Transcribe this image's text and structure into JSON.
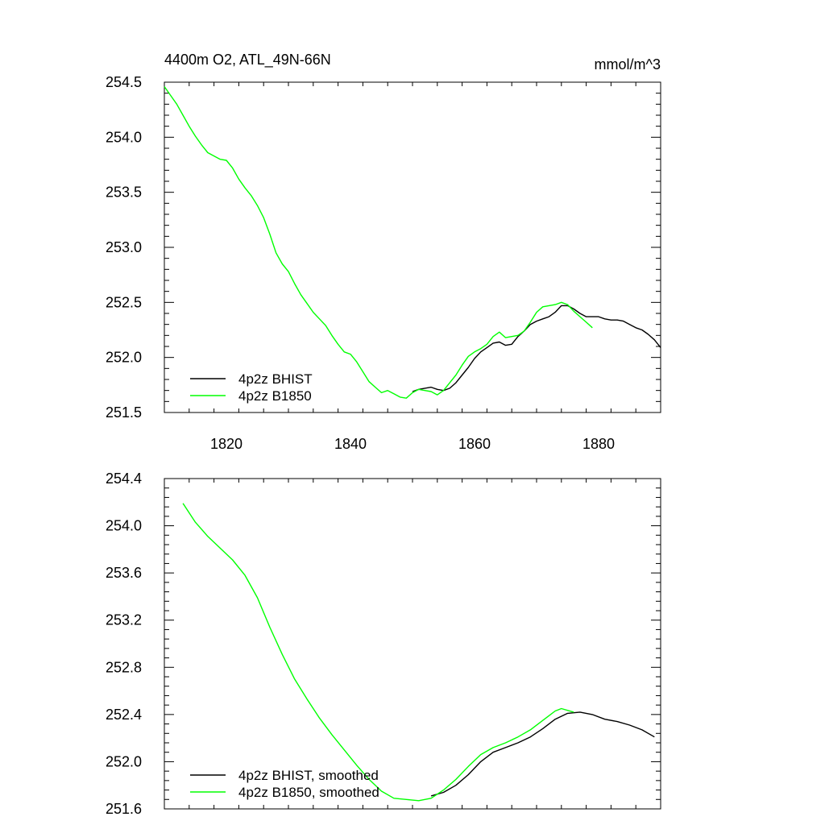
{
  "chart_data": [
    {
      "type": "line",
      "title": "4400m O2, ATL_49N-66N",
      "units": "mmol/m^3",
      "xlim": [
        1810,
        1890
      ],
      "ylim": [
        251.5,
        254.5
      ],
      "xticks": [
        "1820",
        "1840",
        "1860",
        "1880"
      ],
      "yticks": [
        "251.5",
        "252.0",
        "252.5",
        "253.0",
        "253.5",
        "254.0",
        "254.5"
      ],
      "grid": false,
      "legend_position": "bottom-left",
      "series": [
        {
          "name": "4p2z BHIST",
          "color": "#000000",
          "points": [
            [
              1850,
              251.69
            ],
            [
              1851,
              251.71
            ],
            [
              1852,
              251.72
            ],
            [
              1853,
              251.73
            ],
            [
              1854,
              251.71
            ],
            [
              1855,
              251.7
            ],
            [
              1856,
              251.72
            ],
            [
              1857,
              251.77
            ],
            [
              1858,
              251.84
            ],
            [
              1859,
              251.91
            ],
            [
              1860,
              251.99
            ],
            [
              1861,
              252.05
            ],
            [
              1862,
              252.09
            ],
            [
              1863,
              252.13
            ],
            [
              1864,
              252.14
            ],
            [
              1865,
              252.11
            ],
            [
              1866,
              252.12
            ],
            [
              1867,
              252.19
            ],
            [
              1868,
              252.24
            ],
            [
              1869,
              252.3
            ],
            [
              1870,
              252.33
            ],
            [
              1871,
              252.35
            ],
            [
              1872,
              252.37
            ],
            [
              1873,
              252.41
            ],
            [
              1874,
              252.47
            ],
            [
              1875,
              252.47
            ],
            [
              1876,
              252.44
            ],
            [
              1877,
              252.4
            ],
            [
              1878,
              252.37
            ],
            [
              1879,
              252.37
            ],
            [
              1880,
              252.37
            ],
            [
              1881,
              252.35
            ],
            [
              1882,
              252.34
            ],
            [
              1883,
              252.34
            ],
            [
              1884,
              252.33
            ],
            [
              1885,
              252.3
            ],
            [
              1886,
              252.27
            ],
            [
              1887,
              252.25
            ],
            [
              1888,
              252.21
            ],
            [
              1889,
              252.16
            ],
            [
              1890,
              252.09
            ]
          ]
        },
        {
          "name": "4p2z B1850",
          "color": "#00ff00",
          "points": [
            [
              1810,
              254.46
            ],
            [
              1811,
              254.38
            ],
            [
              1812,
              254.3
            ],
            [
              1813,
              254.2
            ],
            [
              1814,
              254.1
            ],
            [
              1815,
              254.01
            ],
            [
              1816,
              253.93
            ],
            [
              1817,
              253.86
            ],
            [
              1818,
              253.83
            ],
            [
              1819,
              253.8
            ],
            [
              1820,
              253.79
            ],
            [
              1821,
              253.72
            ],
            [
              1822,
              253.62
            ],
            [
              1823,
              253.54
            ],
            [
              1824,
              253.47
            ],
            [
              1825,
              253.38
            ],
            [
              1826,
              253.27
            ],
            [
              1827,
              253.12
            ],
            [
              1828,
              252.95
            ],
            [
              1829,
              252.85
            ],
            [
              1830,
              252.78
            ],
            [
              1831,
              252.67
            ],
            [
              1832,
              252.57
            ],
            [
              1833,
              252.49
            ],
            [
              1834,
              252.41
            ],
            [
              1835,
              252.35
            ],
            [
              1836,
              252.29
            ],
            [
              1837,
              252.2
            ],
            [
              1838,
              252.12
            ],
            [
              1839,
              252.05
            ],
            [
              1840,
              252.03
            ],
            [
              1841,
              251.96
            ],
            [
              1842,
              251.87
            ],
            [
              1843,
              251.78
            ],
            [
              1844,
              251.73
            ],
            [
              1845,
              251.68
            ],
            [
              1846,
              251.7
            ],
            [
              1847,
              251.67
            ],
            [
              1848,
              251.64
            ],
            [
              1849,
              251.63
            ],
            [
              1850,
              251.68
            ],
            [
              1851,
              251.71
            ],
            [
              1852,
              251.7
            ],
            [
              1853,
              251.69
            ],
            [
              1854,
              251.66
            ],
            [
              1855,
              251.7
            ],
            [
              1856,
              251.77
            ],
            [
              1857,
              251.84
            ],
            [
              1858,
              251.93
            ],
            [
              1859,
              252.01
            ],
            [
              1860,
              252.05
            ],
            [
              1861,
              252.08
            ],
            [
              1862,
              252.12
            ],
            [
              1863,
              252.19
            ],
            [
              1864,
              252.23
            ],
            [
              1865,
              252.18
            ],
            [
              1866,
              252.19
            ],
            [
              1867,
              252.2
            ],
            [
              1868,
              252.24
            ],
            [
              1869,
              252.32
            ],
            [
              1870,
              252.41
            ],
            [
              1871,
              252.46
            ],
            [
              1872,
              252.47
            ],
            [
              1873,
              252.48
            ],
            [
              1874,
              252.5
            ],
            [
              1875,
              252.48
            ],
            [
              1876,
              252.42
            ],
            [
              1877,
              252.37
            ],
            [
              1878,
              252.32
            ],
            [
              1879,
              252.27
            ]
          ]
        }
      ]
    },
    {
      "type": "line",
      "xlim": [
        1810,
        1890
      ],
      "ylim": [
        251.6,
        254.4
      ],
      "xticks": [],
      "yticks": [
        "251.6",
        "252.0",
        "252.4",
        "252.8",
        "253.2",
        "253.6",
        "254.0",
        "254.4"
      ],
      "grid": false,
      "legend_position": "bottom-left",
      "series": [
        {
          "name": "4p2z BHIST, smoothed",
          "color": "#000000",
          "points": [
            [
              1853,
              251.71
            ],
            [
              1855,
              251.74
            ],
            [
              1857,
              251.8
            ],
            [
              1859,
              251.89
            ],
            [
              1861,
              252.0
            ],
            [
              1863,
              252.08
            ],
            [
              1865,
              252.12
            ],
            [
              1867,
              252.16
            ],
            [
              1869,
              252.21
            ],
            [
              1871,
              252.28
            ],
            [
              1873,
              252.36
            ],
            [
              1875,
              252.41
            ],
            [
              1877,
              252.42
            ],
            [
              1879,
              252.4
            ],
            [
              1881,
              252.36
            ],
            [
              1883,
              252.34
            ],
            [
              1885,
              252.31
            ],
            [
              1887,
              252.27
            ],
            [
              1889,
              252.21
            ]
          ]
        },
        {
          "name": "4p2z B1850, smoothed",
          "color": "#00ff00",
          "points": [
            [
              1813,
              254.19
            ],
            [
              1815,
              254.03
            ],
            [
              1817,
              253.91
            ],
            [
              1819,
              253.81
            ],
            [
              1821,
              253.71
            ],
            [
              1823,
              253.58
            ],
            [
              1825,
              253.39
            ],
            [
              1827,
              253.14
            ],
            [
              1829,
              252.91
            ],
            [
              1831,
              252.7
            ],
            [
              1833,
              252.53
            ],
            [
              1835,
              252.37
            ],
            [
              1837,
              252.23
            ],
            [
              1839,
              252.1
            ],
            [
              1841,
              251.97
            ],
            [
              1843,
              251.85
            ],
            [
              1845,
              251.75
            ],
            [
              1847,
              251.69
            ],
            [
              1849,
              251.68
            ],
            [
              1851,
              251.67
            ],
            [
              1853,
              251.69
            ],
            [
              1855,
              251.76
            ],
            [
              1857,
              251.85
            ],
            [
              1859,
              251.96
            ],
            [
              1861,
              252.06
            ],
            [
              1863,
              252.12
            ],
            [
              1865,
              252.16
            ],
            [
              1867,
              252.21
            ],
            [
              1869,
              252.27
            ],
            [
              1871,
              252.35
            ],
            [
              1873,
              252.43
            ],
            [
              1874,
              252.45
            ],
            [
              1876,
              252.42
            ]
          ]
        }
      ]
    }
  ]
}
